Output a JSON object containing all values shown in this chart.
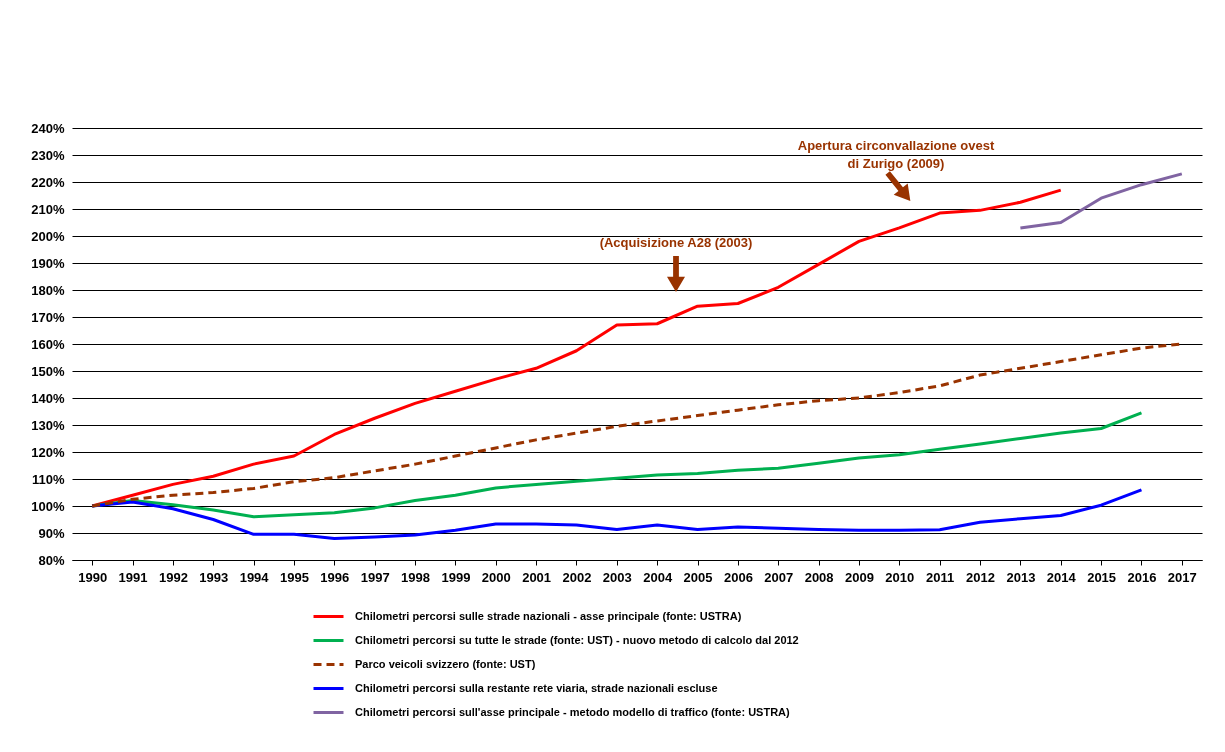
{
  "chart_data": {
    "type": "line",
    "categories": [
      "1990",
      "1991",
      "1992",
      "1993",
      "1994",
      "1995",
      "1996",
      "1997",
      "1998",
      "1999",
      "2000",
      "2001",
      "2002",
      "2003",
      "2004",
      "2005",
      "2006",
      "2007",
      "2008",
      "2009",
      "2010",
      "2011",
      "2012",
      "2013",
      "2014",
      "2015",
      "2016",
      "2017"
    ],
    "series": [
      {
        "name": "Chilometri percorsi sulle strade nazionali - asse  principale (fonte: USTRA)",
        "color": "#ff0000",
        "line_style": "solid",
        "values": [
          100,
          104,
          108,
          111,
          115.5,
          118.5,
          126.5,
          132.5,
          138,
          142.5,
          147,
          151,
          157.5,
          167,
          167.5,
          174,
          175,
          181,
          189.5,
          198,
          203,
          208.5,
          209.5,
          212.5,
          217,
          null,
          null,
          null
        ]
      },
      {
        "name": "Chilometri percorsi su tutte le strade (fonte: UST) - nuovo metodo di calcolo dal 2012",
        "color": "#00b050",
        "line_style": "solid",
        "values": [
          100,
          102,
          100.5,
          98.5,
          96,
          96.8,
          97.5,
          99.3,
          102,
          104,
          106.7,
          108,
          109.2,
          110.3,
          111.5,
          112,
          113.2,
          114,
          115.8,
          117.8,
          119,
          121,
          123,
          125,
          127,
          128.7,
          134.5,
          null
        ]
      },
      {
        "name": "Parco veicoli svizzero (fonte: UST)",
        "color": "#993300",
        "line_style": "dashed",
        "values": [
          100,
          102.5,
          104,
          105,
          106.5,
          109,
          110.5,
          113,
          115.5,
          118.5,
          121.5,
          124.5,
          127,
          129.5,
          131.5,
          133.5,
          135.5,
          137.5,
          139,
          140,
          142,
          144.5,
          148.5,
          151,
          153.5,
          156,
          158.5,
          160
        ]
      },
      {
        "name": "Chilometri percorsi sulla restante rete viaria, strade nazionali escluse",
        "color": "#0000ff",
        "line_style": "solid",
        "values": [
          100,
          101.5,
          99,
          95,
          89.5,
          89.5,
          88,
          88.5,
          89.3,
          91,
          93.3,
          93.3,
          93,
          91.3,
          93,
          91.3,
          92.2,
          91.8,
          91.3,
          91,
          91,
          91.2,
          94,
          95.3,
          96.5,
          100.3,
          106,
          null
        ]
      },
      {
        "name": "Chilometri percorsi sull'asse principale - metodo modello di traffico (fonte: USTRA)",
        "color": "#8064a2",
        "line_style": "solid",
        "values": [
          null,
          null,
          null,
          null,
          null,
          null,
          null,
          null,
          null,
          null,
          null,
          null,
          null,
          null,
          null,
          null,
          null,
          null,
          null,
          null,
          null,
          null,
          null,
          203,
          205,
          214,
          219,
          223
        ]
      }
    ],
    "ylim": [
      80,
      240
    ],
    "yticks": [
      {
        "value": 80,
        "label": "80%"
      },
      {
        "value": 90,
        "label": "90%"
      },
      {
        "value": 100,
        "label": "100%"
      },
      {
        "value": 110,
        "label": "110%"
      },
      {
        "value": 120,
        "label": "120%"
      },
      {
        "value": 130,
        "label": "130%"
      },
      {
        "value": 140,
        "label": "140%"
      },
      {
        "value": 150,
        "label": "150%"
      },
      {
        "value": 160,
        "label": "160%"
      },
      {
        "value": 170,
        "label": "170%"
      },
      {
        "value": 180,
        "label": "180%"
      },
      {
        "value": 190,
        "label": "190%"
      },
      {
        "value": 200,
        "label": "200%"
      },
      {
        "value": 210,
        "label": "210%"
      },
      {
        "value": 220,
        "label": "220%"
      },
      {
        "value": 230,
        "label": "230%"
      },
      {
        "value": 240,
        "label": "240%"
      }
    ],
    "grid": "y",
    "legend": "bottom",
    "annotations": [
      "(Acquisizione A28 (2003)",
      "Apertura circonvallazione ovest\ndi Zurigo (2009)"
    ]
  }
}
